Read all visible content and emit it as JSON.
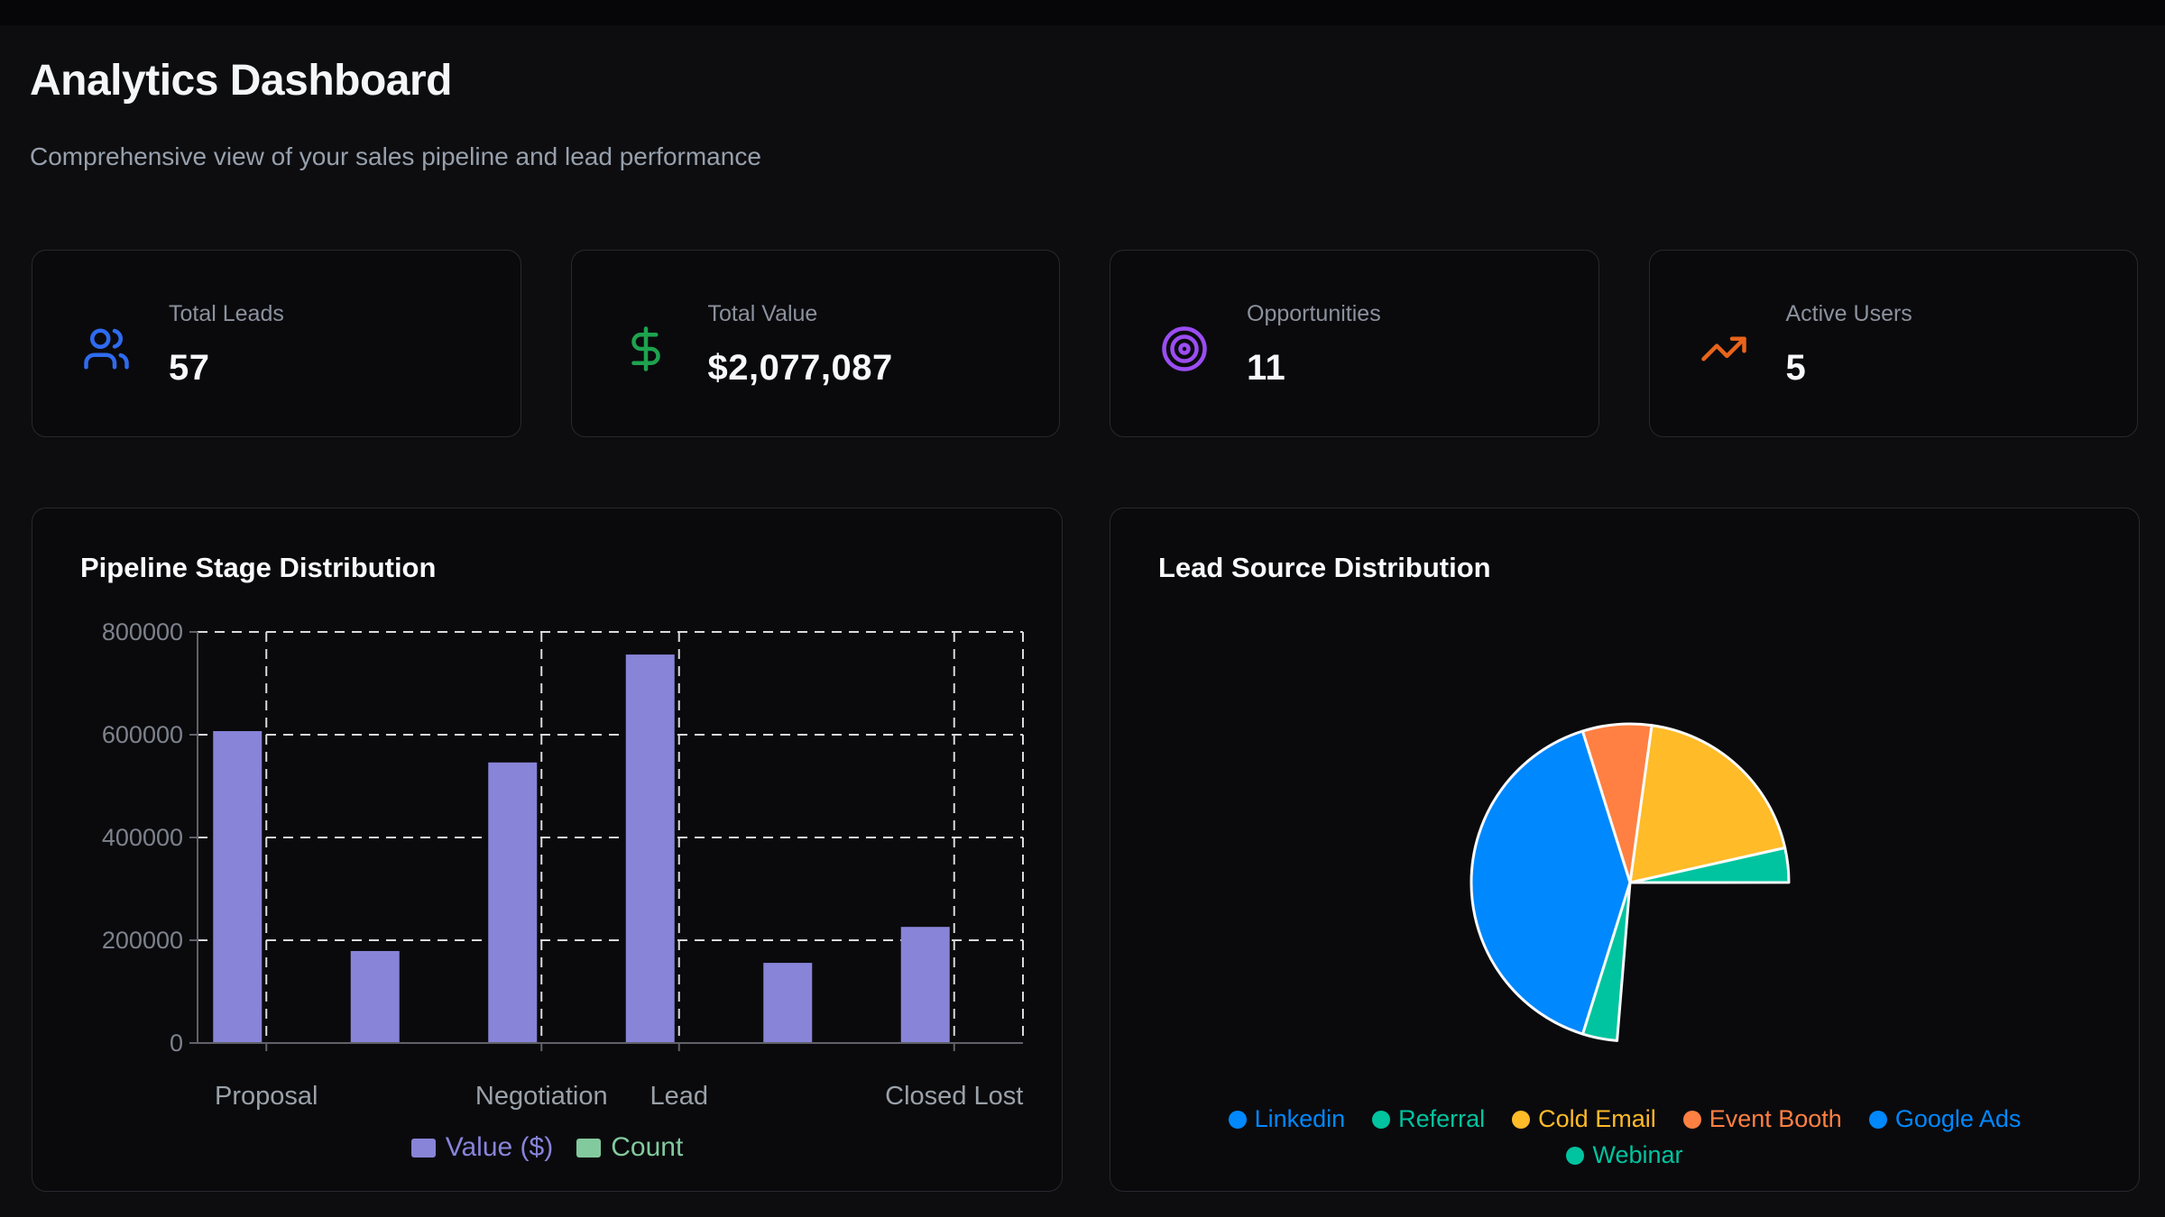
{
  "header": {
    "title": "Analytics Dashboard",
    "subtitle": "Comprehensive view of your sales pipeline and lead performance"
  },
  "stat_cards": [
    {
      "label": "Total Leads",
      "value": "57",
      "icon": "users-icon",
      "icon_color": "#2e6bef"
    },
    {
      "label": "Total Value",
      "value": "$2,077,087",
      "icon": "dollar-sign-icon",
      "icon_color": "#1ea34e"
    },
    {
      "label": "Opportunities",
      "value": "11",
      "icon": "target-icon",
      "icon_color": "#9b4df2"
    },
    {
      "label": "Active Users",
      "value": "5",
      "icon": "trending-up-icon",
      "icon_color": "#e8641b"
    }
  ],
  "chart_data": [
    {
      "id": "pipeline-stage",
      "type": "bar",
      "title": "Pipeline Stage Distribution",
      "categories": [
        "Proposal",
        "",
        "Negotiation",
        "Lead",
        "",
        "Closed Lost"
      ],
      "x_tick_labels_shown": [
        "Proposal",
        "Negotiation",
        "Lead",
        "Closed Lost"
      ],
      "series": [
        {
          "name": "Value ($)",
          "color": "#8884d8",
          "values": [
            607000,
            179000,
            546000,
            756000,
            156000,
            226000
          ]
        },
        {
          "name": "Count",
          "color": "#82ca9d",
          "values": [
            null,
            null,
            null,
            null,
            null,
            null
          ]
        }
      ],
      "xlabel": "",
      "ylabel": "",
      "ylim": [
        0,
        800000
      ],
      "y_ticks": [
        "0",
        "200000",
        "400000",
        "600000",
        "800000"
      ],
      "grid": "dashed",
      "legend_position": "bottom"
    },
    {
      "id": "lead-source",
      "type": "pie",
      "title": "Lead Source Distribution",
      "total": 57,
      "start_angle_deg": 265.3,
      "direction": "counterclockwise",
      "slices": [
        {
          "label": "Linkedin",
          "value": 15,
          "color": "#0088FE",
          "visible": false
        },
        {
          "label": "Referral",
          "value": 2,
          "color": "#00C49F",
          "visible": true
        },
        {
          "label": "Cold Email",
          "value": 11,
          "color": "#FFBB28",
          "visible": true
        },
        {
          "label": "Event Booth",
          "value": 4,
          "color": "#FF8042",
          "visible": true
        },
        {
          "label": "Google Ads",
          "value": 23,
          "color": "#0088FE",
          "visible": true
        },
        {
          "label": "Webinar",
          "value": 2,
          "color": "#00C49F",
          "visible": true
        }
      ],
      "legend_rows": [
        [
          "Linkedin",
          "Referral",
          "Cold Email",
          "Event Booth",
          "Google Ads"
        ],
        [
          "Webinar"
        ]
      ],
      "legend_position": "bottom"
    }
  ]
}
